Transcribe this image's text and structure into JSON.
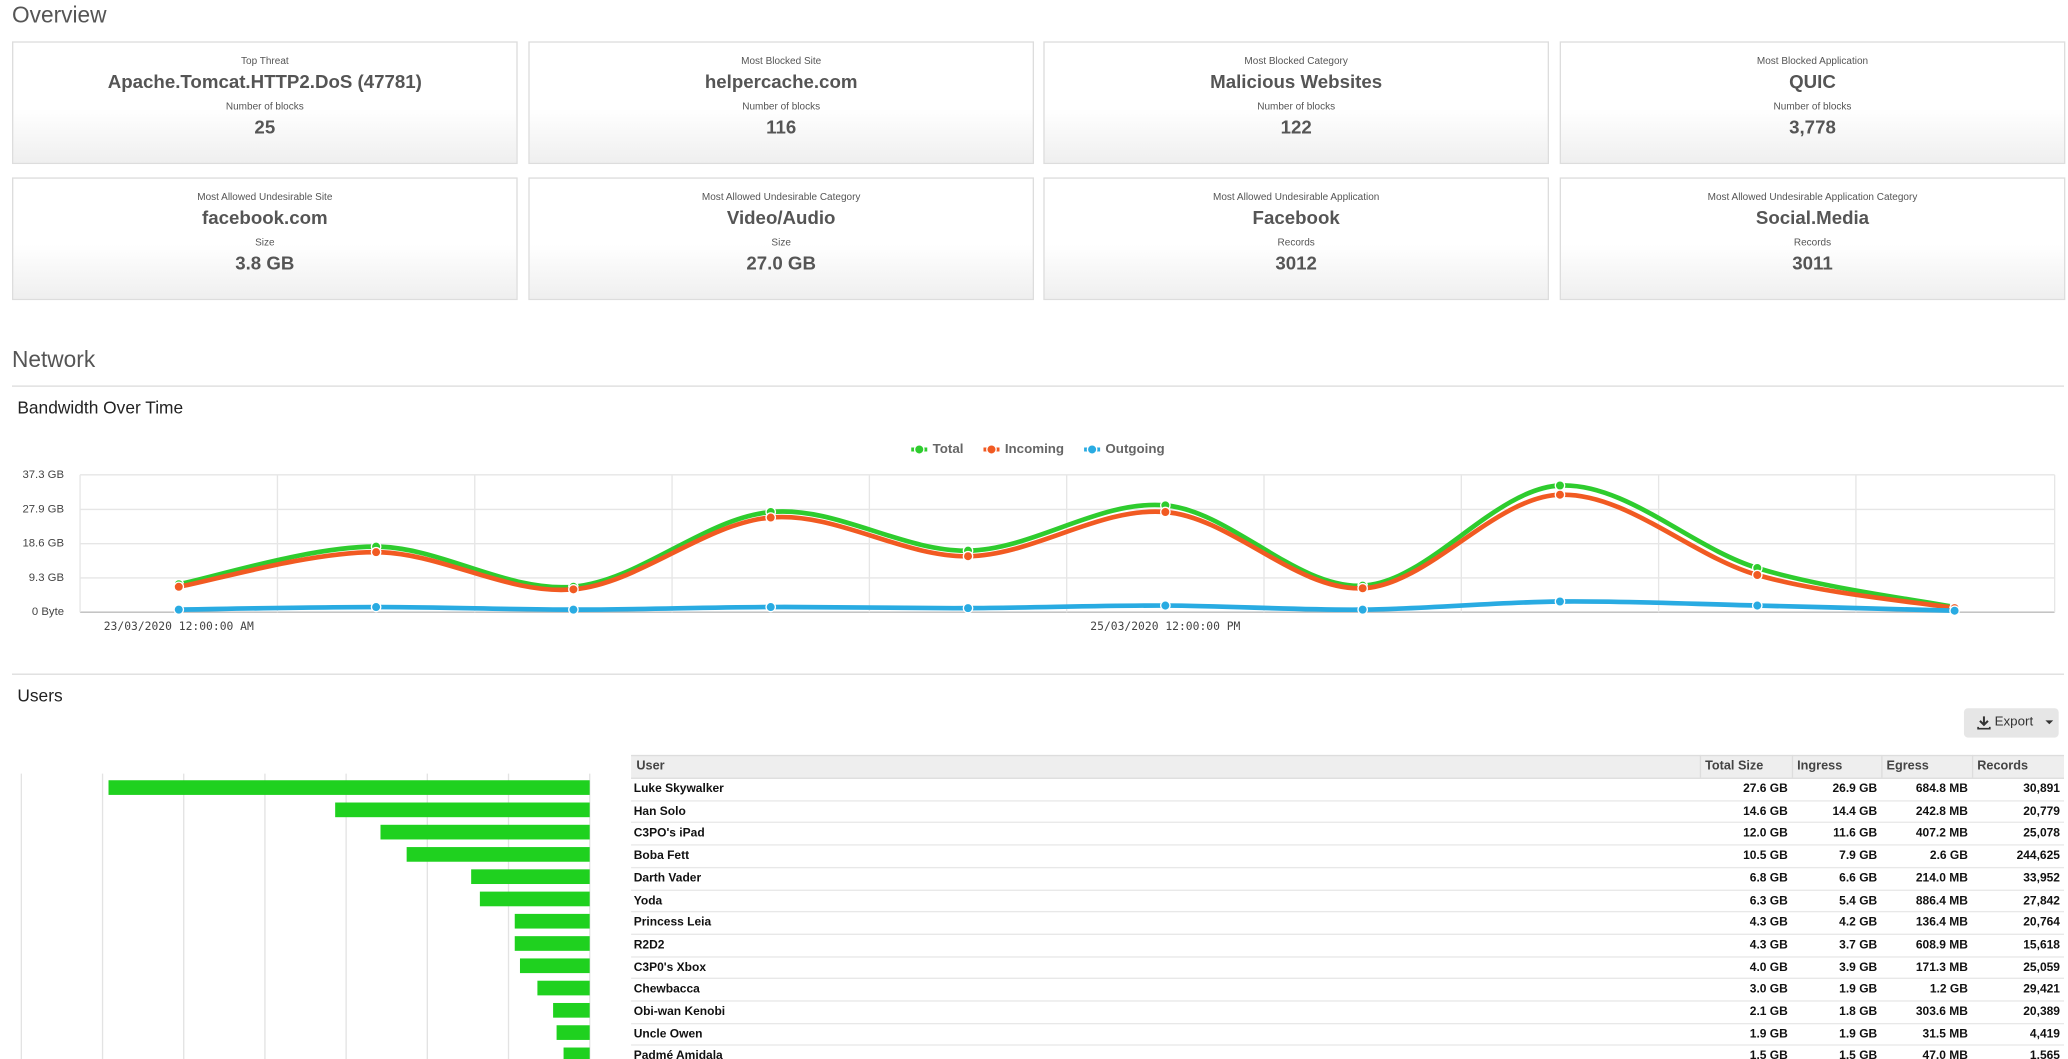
{
  "overview": {
    "title": "Overview",
    "cards": [
      {
        "label": "Top Threat",
        "value": "Apache.Tomcat.HTTP2.DoS (47781)",
        "sublabel": "Number of blocks",
        "subvalue": "25"
      },
      {
        "label": "Most Blocked Site",
        "value": "helpercache.com",
        "sublabel": "Number of blocks",
        "subvalue": "116"
      },
      {
        "label": "Most Blocked Category",
        "value": "Malicious Websites",
        "sublabel": "Number of blocks",
        "subvalue": "122"
      },
      {
        "label": "Most Blocked Application",
        "value": "QUIC",
        "sublabel": "Number of blocks",
        "subvalue": "3,778"
      },
      {
        "label": "Most Allowed Undesirable Site",
        "value": "facebook.com",
        "sublabel": "Size",
        "subvalue": "3.8 GB"
      },
      {
        "label": "Most Allowed Undesirable Category",
        "value": "Video/Audio",
        "sublabel": "Size",
        "subvalue": "27.0 GB"
      },
      {
        "label": "Most Allowed Undesirable Application",
        "value": "Facebook",
        "sublabel": "Records",
        "subvalue": "3012"
      },
      {
        "label": "Most Allowed Undesirable Application Category",
        "value": "Social.Media",
        "sublabel": "Records",
        "subvalue": "3011"
      }
    ]
  },
  "network": {
    "title": "Network"
  },
  "users": {
    "title": "Users",
    "export": "Export",
    "table": {
      "columns": [
        "User",
        "Total Size",
        "Ingress",
        "Egress",
        "Records"
      ],
      "rows": [
        [
          "Luke Skywalker",
          "27.6 GB",
          "26.9 GB",
          "684.8 MB",
          "30,891"
        ],
        [
          "Han Solo",
          "14.6 GB",
          "14.4 GB",
          "242.8 MB",
          "20,779"
        ],
        [
          "C3PO's iPad",
          "12.0 GB",
          "11.6 GB",
          "407.2 MB",
          "25,078"
        ],
        [
          "Boba Fett",
          "10.5 GB",
          "7.9 GB",
          "2.6 GB",
          "244,625"
        ],
        [
          "Darth Vader",
          "6.8 GB",
          "6.6 GB",
          "214.0 MB",
          "33,952"
        ],
        [
          "Yoda",
          "6.3 GB",
          "5.4 GB",
          "886.4 MB",
          "27,842"
        ],
        [
          "Princess Leia",
          "4.3 GB",
          "4.2 GB",
          "136.4 MB",
          "20,764"
        ],
        [
          "R2D2",
          "4.3 GB",
          "3.7 GB",
          "608.9 MB",
          "15,618"
        ],
        [
          "C3P0's Xbox",
          "4.0 GB",
          "3.9 GB",
          "171.3 MB",
          "25,059"
        ],
        [
          "Chewbacca",
          "3.0 GB",
          "1.9 GB",
          "1.2 GB",
          "29,421"
        ],
        [
          "Obi-wan Kenobi",
          "2.1 GB",
          "1.8 GB",
          "303.6 MB",
          "20,389"
        ],
        [
          "Uncle Owen",
          "1.9 GB",
          "1.9 GB",
          "31.5 MB",
          "4,419"
        ],
        [
          "Padmé Amidala",
          "1.5 GB",
          "1.5 GB",
          "47.0 MB",
          "1,565"
        ]
      ]
    }
  },
  "chart_data": [
    {
      "type": "line",
      "title": "Bandwidth Over Time",
      "categories": [
        "23/03/2020 12:00:00 AM",
        null,
        null,
        null,
        null,
        "25/03/2020 12:00:00 PM",
        null,
        null,
        null,
        null
      ],
      "series": [
        {
          "name": "Total",
          "color": "#2ecc2e",
          "values": [
            7.6,
            17.8,
            6.9,
            27.2,
            16.7,
            29.0,
            7.2,
            34.4,
            12.0,
            1.4
          ]
        },
        {
          "name": "Incoming",
          "color": "#f15a22",
          "values": [
            6.9,
            16.3,
            6.2,
            25.7,
            15.2,
            27.2,
            6.5,
            31.9,
            10.1,
            1.1
          ]
        },
        {
          "name": "Outgoing",
          "color": "#29abe2",
          "values": [
            0.7,
            1.4,
            0.7,
            1.4,
            1.1,
            1.8,
            0.7,
            2.9,
            1.8,
            0.4
          ]
        }
      ],
      "ylim": [
        0,
        37.3
      ],
      "yticks": [
        {
          "value": 0,
          "label": "0 Byte"
        },
        {
          "value": 9.3,
          "label": "9.3 GB"
        },
        {
          "value": 18.6,
          "label": "18.6 GB"
        },
        {
          "value": 27.9,
          "label": "27.9 GB"
        },
        {
          "value": 37.3,
          "label": "37.3 GB"
        }
      ],
      "grid": true,
      "smooth": true,
      "legend": "top"
    },
    {
      "type": "hbar",
      "values": [
        27.6,
        14.6,
        12.0,
        10.5,
        6.8,
        6.3,
        4.3,
        4.3,
        4.0,
        3.0,
        2.1,
        1.9,
        1.5
      ],
      "color": "#1fd11f",
      "xlim": [
        0,
        32.6
      ],
      "x_reversed": true,
      "grid": true
    }
  ]
}
